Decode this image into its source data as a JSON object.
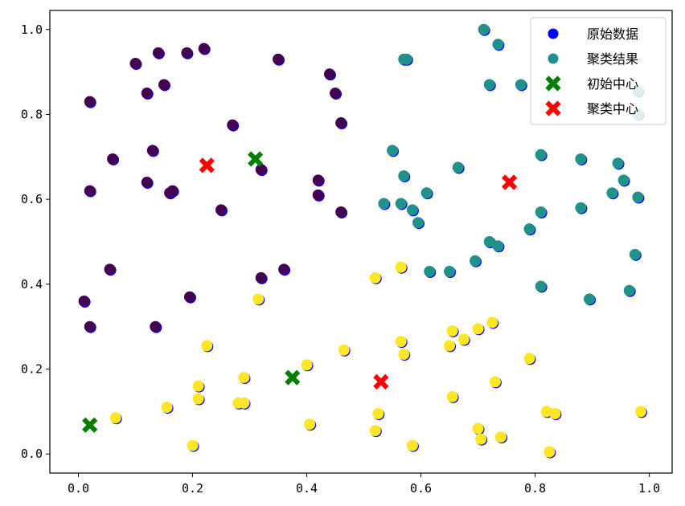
{
  "chart_data": {
    "type": "scatter",
    "xlim": [
      -0.05,
      1.04
    ],
    "ylim": [
      -0.045,
      1.045
    ],
    "x_ticks": [
      0.0,
      0.2,
      0.4,
      0.6,
      0.8,
      1.0
    ],
    "y_ticks": [
      0.0,
      0.2,
      0.4,
      0.6,
      0.8,
      1.0
    ],
    "x_tick_labels": [
      "0.0",
      "0.2",
      "0.4",
      "0.6",
      "0.8",
      "1.0"
    ],
    "y_tick_labels": [
      "0.0",
      "0.2",
      "0.4",
      "0.6",
      "0.8",
      "1.0"
    ],
    "grid": false,
    "legend_position": "top-right",
    "legend": [
      {
        "label": "原始数据",
        "marker": "circle",
        "color": "#0000ff"
      },
      {
        "label": "聚类结果",
        "marker": "circle",
        "color": "#21918c"
      },
      {
        "label": "初始中心",
        "marker": "x",
        "color": "#008000"
      },
      {
        "label": "聚类中心",
        "marker": "x",
        "color": "#ff0000"
      }
    ],
    "cluster_colors": [
      "#440154",
      "#21918c",
      "#fde725"
    ],
    "points": [
      [
        0.02,
        0.83,
        0
      ],
      [
        0.1,
        0.92,
        0
      ],
      [
        0.14,
        0.945,
        0
      ],
      [
        0.19,
        0.945,
        0
      ],
      [
        0.22,
        0.955,
        0
      ],
      [
        0.15,
        0.87,
        0
      ],
      [
        0.12,
        0.85,
        0
      ],
      [
        0.35,
        0.93,
        0
      ],
      [
        0.44,
        0.895,
        0
      ],
      [
        0.45,
        0.85,
        0
      ],
      [
        0.27,
        0.775,
        0
      ],
      [
        0.46,
        0.78,
        0
      ],
      [
        0.06,
        0.695,
        0
      ],
      [
        0.13,
        0.715,
        0
      ],
      [
        0.32,
        0.67,
        0
      ],
      [
        0.12,
        0.64,
        0
      ],
      [
        0.16,
        0.615,
        0
      ],
      [
        0.165,
        0.62,
        0
      ],
      [
        0.02,
        0.62,
        0
      ],
      [
        0.42,
        0.645,
        0
      ],
      [
        0.42,
        0.61,
        0
      ],
      [
        0.25,
        0.575,
        0
      ],
      [
        0.46,
        0.57,
        0
      ],
      [
        0.055,
        0.435,
        0
      ],
      [
        0.36,
        0.435,
        0
      ],
      [
        0.32,
        0.415,
        0
      ],
      [
        0.01,
        0.36,
        0
      ],
      [
        0.195,
        0.37,
        0
      ],
      [
        0.02,
        0.3,
        0
      ],
      [
        0.135,
        0.3,
        0
      ],
      [
        0.71,
        1.0,
        1
      ],
      [
        0.735,
        0.965,
        1
      ],
      [
        0.57,
        0.93,
        1
      ],
      [
        0.575,
        0.93,
        1
      ],
      [
        0.72,
        0.87,
        1
      ],
      [
        0.775,
        0.87,
        1
      ],
      [
        0.98,
        0.855,
        1
      ],
      [
        0.98,
        0.8,
        1
      ],
      [
        0.55,
        0.715,
        1
      ],
      [
        0.81,
        0.705,
        1
      ],
      [
        0.88,
        0.695,
        1
      ],
      [
        0.945,
        0.685,
        1
      ],
      [
        0.57,
        0.655,
        1
      ],
      [
        0.665,
        0.675,
        1
      ],
      [
        0.955,
        0.645,
        1
      ],
      [
        0.61,
        0.615,
        1
      ],
      [
        0.935,
        0.615,
        1
      ],
      [
        0.98,
        0.605,
        1
      ],
      [
        0.535,
        0.59,
        1
      ],
      [
        0.565,
        0.59,
        1
      ],
      [
        0.585,
        0.575,
        1
      ],
      [
        0.81,
        0.57,
        1
      ],
      [
        0.88,
        0.58,
        1
      ],
      [
        0.595,
        0.545,
        1
      ],
      [
        0.79,
        0.53,
        1
      ],
      [
        0.72,
        0.5,
        1
      ],
      [
        0.735,
        0.49,
        1
      ],
      [
        0.975,
        0.47,
        1
      ],
      [
        0.695,
        0.455,
        1
      ],
      [
        0.615,
        0.43,
        1
      ],
      [
        0.65,
        0.43,
        1
      ],
      [
        0.81,
        0.395,
        1
      ],
      [
        0.965,
        0.385,
        1
      ],
      [
        0.895,
        0.365,
        1
      ],
      [
        0.52,
        0.415,
        2
      ],
      [
        0.565,
        0.44,
        2
      ],
      [
        0.315,
        0.365,
        2
      ],
      [
        0.225,
        0.255,
        2
      ],
      [
        0.465,
        0.245,
        2
      ],
      [
        0.565,
        0.265,
        2
      ],
      [
        0.57,
        0.235,
        2
      ],
      [
        0.655,
        0.29,
        2
      ],
      [
        0.65,
        0.255,
        2
      ],
      [
        0.675,
        0.27,
        2
      ],
      [
        0.7,
        0.295,
        2
      ],
      [
        0.725,
        0.31,
        2
      ],
      [
        0.79,
        0.225,
        2
      ],
      [
        0.4,
        0.21,
        2
      ],
      [
        0.29,
        0.18,
        2
      ],
      [
        0.21,
        0.16,
        2
      ],
      [
        0.21,
        0.13,
        2
      ],
      [
        0.28,
        0.12,
        2
      ],
      [
        0.29,
        0.12,
        2
      ],
      [
        0.155,
        0.11,
        2
      ],
      [
        0.065,
        0.085,
        2
      ],
      [
        0.73,
        0.17,
        2
      ],
      [
        0.655,
        0.135,
        2
      ],
      [
        0.525,
        0.095,
        2
      ],
      [
        0.52,
        0.055,
        2
      ],
      [
        0.405,
        0.07,
        2
      ],
      [
        0.7,
        0.06,
        2
      ],
      [
        0.705,
        0.035,
        2
      ],
      [
        0.74,
        0.04,
        2
      ],
      [
        0.82,
        0.1,
        2
      ],
      [
        0.835,
        0.095,
        2
      ],
      [
        0.985,
        0.1,
        2
      ],
      [
        0.2,
        0.02,
        2
      ],
      [
        0.585,
        0.02,
        2
      ],
      [
        0.825,
        0.005,
        2
      ]
    ],
    "initial_centers": [
      [
        0.31,
        0.695
      ],
      [
        0.02,
        0.068
      ],
      [
        0.375,
        0.18
      ]
    ],
    "cluster_centers": [
      [
        0.225,
        0.68
      ],
      [
        0.755,
        0.64
      ],
      [
        0.53,
        0.17
      ]
    ]
  }
}
